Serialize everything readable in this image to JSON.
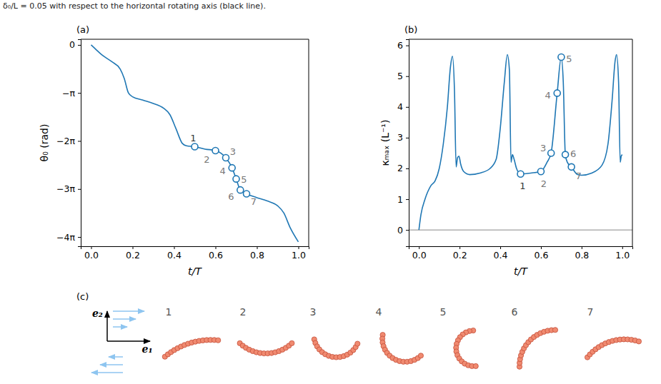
{
  "caption": "δ₀/L = 0.05 with respect to the horizontal rotating axis (black line).",
  "chart_data": [
    {
      "type": "line",
      "panel_label": "(a)",
      "xlabel": "t/T",
      "ylabel": "θ₀ (rad)",
      "xlim": [
        -0.05,
        1.05
      ],
      "ylim": [
        -13.17,
        0.37
      ],
      "xticks": [
        {
          "value": 0,
          "label": "0.0"
        },
        {
          "value": 0.2,
          "label": "0.2"
        },
        {
          "value": 0.4,
          "label": "0.4"
        },
        {
          "value": 0.6,
          "label": "0.6"
        },
        {
          "value": 0.8,
          "label": "0.8"
        },
        {
          "value": 1,
          "label": "1.0"
        }
      ],
      "yticks": [
        {
          "value": 0,
          "label": "0"
        },
        {
          "value": -3.1416,
          "label": "−π"
        },
        {
          "value": -6.2832,
          "label": "−2π"
        },
        {
          "value": -9.4248,
          "label": "−3π"
        },
        {
          "value": -12.5664,
          "label": "−4π"
        }
      ],
      "x": [
        0,
        0.02,
        0.05,
        0.1,
        0.14,
        0.16,
        0.18,
        0.2,
        0.25,
        0.3,
        0.35,
        0.38,
        0.41,
        0.44,
        0.46,
        0.5,
        0.55,
        0.6,
        0.65,
        0.68,
        0.7,
        0.72,
        0.75,
        0.8,
        0.85,
        0.9,
        0.93,
        0.96,
        1.0
      ],
      "series": [
        {
          "color": "#1f77b4",
          "values": [
            0,
            -0.251,
            -0.628,
            -1.1,
            -1.571,
            -2.199,
            -3.142,
            -3.393,
            -3.613,
            -3.833,
            -4.147,
            -4.555,
            -5.498,
            -6.44,
            -6.597,
            -6.66,
            -6.817,
            -6.912,
            -7.383,
            -8.042,
            -8.765,
            -9.488,
            -9.739,
            -9.99,
            -10.21,
            -10.524,
            -10.996,
            -11.938,
            -12.881
          ]
        }
      ],
      "markers": {
        "x": [
          0.5,
          0.6,
          0.65,
          0.68,
          0.7,
          0.72,
          0.75
        ],
        "values": [
          -6.66,
          -6.912,
          -7.383,
          -8.042,
          -8.765,
          -9.488,
          -9.739
        ],
        "labels": [
          "1",
          "2",
          "3",
          "4",
          "5",
          "6",
          "7"
        ]
      }
    },
    {
      "type": "line",
      "panel_label": "(b)",
      "xlabel": "t/T",
      "ylabel": "κₘₐₓ (L⁻¹)",
      "xlim": [
        -0.05,
        1.05
      ],
      "ylim": [
        -0.53,
        6.2
      ],
      "xticks": [
        {
          "value": 0,
          "label": "0.0"
        },
        {
          "value": 0.2,
          "label": "0.2"
        },
        {
          "value": 0.4,
          "label": "0.4"
        },
        {
          "value": 0.6,
          "label": "0.6"
        },
        {
          "value": 0.8,
          "label": "0.8"
        },
        {
          "value": 1,
          "label": "1.0"
        }
      ],
      "yticks": [
        0,
        1,
        2,
        3,
        4,
        5,
        6
      ],
      "hline": 0,
      "x": [
        0,
        0.01,
        0.03,
        0.06,
        0.08,
        0.1,
        0.12,
        0.14,
        0.155,
        0.165,
        0.175,
        0.183,
        0.19,
        0.197,
        0.205,
        0.22,
        0.25,
        0.3,
        0.35,
        0.38,
        0.4,
        0.42,
        0.435,
        0.445,
        0.453,
        0.46,
        0.468,
        0.48,
        0.5,
        0.55,
        0.6,
        0.63,
        0.65,
        0.68,
        0.7,
        0.71,
        0.72,
        0.73,
        0.75,
        0.78,
        0.8,
        0.85,
        0.9,
        0.93,
        0.95,
        0.965,
        0.972,
        0.982,
        0.99,
        0.995,
        1.0
      ],
      "series": [
        {
          "color": "#1f77b4",
          "values": [
            0,
            0.5,
            1.0,
            1.45,
            1.6,
            2.0,
            2.8,
            4.0,
            5.3,
            5.65,
            4.5,
            2.05,
            2.35,
            2.4,
            2.15,
            1.9,
            1.8,
            1.85,
            2.0,
            2.3,
            3.3,
            4.8,
            5.7,
            5.2,
            2.2,
            2.45,
            2.3,
            2.0,
            1.82,
            1.85,
            1.9,
            2.2,
            2.5,
            4.45,
            5.62,
            4.8,
            2.45,
            2.2,
            2.05,
            1.8,
            1.78,
            1.85,
            2.1,
            2.8,
            4.2,
            5.5,
            5.7,
            4.8,
            2.2,
            2.4,
            2.45
          ]
        }
      ],
      "markers": {
        "x": [
          0.5,
          0.6,
          0.65,
          0.68,
          0.7,
          0.72,
          0.75
        ],
        "values": [
          1.82,
          1.9,
          2.5,
          4.45,
          5.62,
          2.45,
          2.05
        ],
        "labels": [
          "1",
          "2",
          "3",
          "4",
          "5",
          "6",
          "7"
        ]
      }
    }
  ],
  "illustration": {
    "panel_label": "(c)",
    "basis_labels": [
      "e₁",
      "e₂"
    ],
    "snapshot_labels": [
      "1",
      "2",
      "3",
      "4",
      "5",
      "6",
      "7"
    ]
  }
}
